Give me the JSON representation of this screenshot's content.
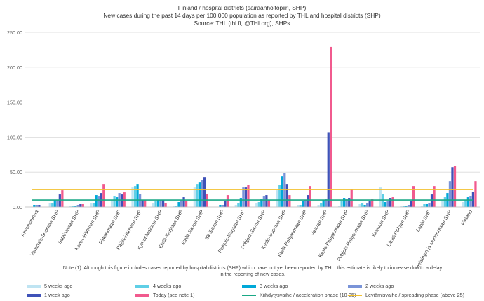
{
  "chart_data": {
    "type": "bar",
    "title_lines": [
      "Finland / hospital districts (sairaanhoitopiiri, SHP)",
      "New cases during the past 14 days per 100.000 population as reported by THL and hospital districts (SHP)",
      "Source: THL (thl.fi, @THLorg), SHPs"
    ],
    "ylim": [
      0,
      250
    ],
    "yticks": [
      "0.00",
      "50.00",
      "100.00",
      "150.00",
      "200.00",
      "250.00"
    ],
    "ytick_values": [
      0,
      50,
      100,
      150,
      200,
      250
    ],
    "categories": [
      "Ahvenanmaa",
      "Varsinais-Suomen SHP",
      "Satakunnan SHP",
      "Kanta-Hämeen SHP",
      "Pirkanmaan SHP",
      "Päijät-Hämeen SHP",
      "Kymenlaakson SHP",
      "Etelä-Karjalan SHP",
      "Etelä-Savon SHP",
      "Itä-Savon SHP",
      "Pohjois-Karjalan SHP",
      "Pohjois-Savon SHP",
      "Keski-Suomen SHP",
      "Etelä-Pohjanmaan SHP",
      "Vaasan SHP",
      "Keski-Pohjanmaan SHP",
      "Pohjois-Pohjanmaan SHP",
      "Kainuun SHP",
      "Länsi-Pohjan SHP",
      "Lapin SHP",
      "Helsingin ja Uudenmaan SHP",
      "Finland"
    ],
    "series": [
      {
        "name": "5 weeks ago",
        "color": "#bfe4f2",
        "values": [
          0,
          5,
          1,
          5,
          10,
          28,
          5,
          1,
          28,
          0,
          3,
          6,
          24,
          3,
          3,
          2,
          4,
          28,
          1,
          2,
          10,
          7
        ]
      },
      {
        "name": "4 weeks ago",
        "color": "#5fcfe6",
        "values": [
          0,
          5,
          1,
          6,
          15,
          30,
          9,
          2,
          33,
          0,
          5,
          7,
          32,
          3,
          5,
          9,
          5,
          19,
          1,
          4,
          14,
          10
        ]
      },
      {
        "name": "3 weeks ago",
        "color": "#00a8d8",
        "values": [
          3,
          10,
          2,
          17,
          14,
          33,
          10,
          7,
          35,
          3,
          13,
          12,
          44,
          9,
          10,
          13,
          3,
          7,
          2,
          4,
          20,
          14
        ]
      },
      {
        "name": "2 weeks ago",
        "color": "#7a94d8",
        "values": [
          3,
          10,
          3,
          15,
          20,
          19,
          10,
          10,
          39,
          3,
          28,
          15,
          49,
          10,
          12,
          12,
          5,
          8,
          3,
          5,
          37,
          16
        ]
      },
      {
        "name": "1 week ago",
        "color": "#3f52b8",
        "values": [
          3,
          18,
          4,
          20,
          18,
          10,
          10,
          14,
          43,
          9,
          28,
          17,
          33,
          17,
          107,
          13,
          8,
          13,
          8,
          18,
          57,
          22
        ]
      },
      {
        "name": "Today (see note 1)",
        "color": "#f15a8e",
        "values": [
          0,
          24,
          4,
          33,
          21,
          10,
          6,
          9,
          19,
          17,
          32,
          10,
          17,
          30,
          229,
          25,
          11,
          14,
          30,
          30,
          59,
          37
        ]
      }
    ],
    "reference_lines": [
      {
        "name": "Kiihdytysvaihe / acceleration phase (10-25)",
        "color": "#1aa886",
        "value": 10
      },
      {
        "name": "Leviämisvaihe / spreading phase (above 25)",
        "color": "#f2c12e",
        "value": 25
      }
    ],
    "note_lines": [
      "Note (1): Although this figure includes cases reported by hospital districts (SHP) which have not yet been reported by THL, this estimate is likely to increase due to a delay",
      "in the reporting of new cases."
    ]
  }
}
